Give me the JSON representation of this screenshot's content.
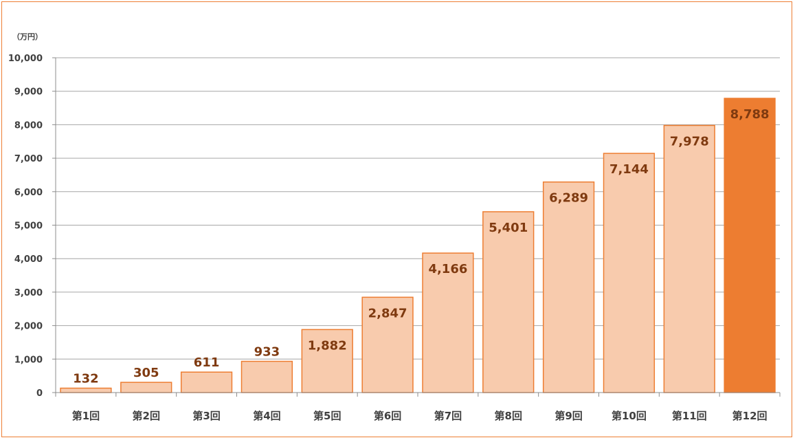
{
  "chart_data": {
    "type": "bar",
    "ylabel": "（万円）",
    "categories": [
      "第1回",
      "第2回",
      "第3回",
      "第4回",
      "第5回",
      "第6回",
      "第7回",
      "第8回",
      "第9回",
      "第10回",
      "第11回",
      "第12回"
    ],
    "values": [
      132,
      305,
      611,
      933,
      1882,
      2847,
      4166,
      5401,
      6289,
      7144,
      7978,
      8788
    ],
    "value_labels": [
      "132",
      "305",
      "611",
      "933",
      "1,882",
      "2,847",
      "4,166",
      "5,401",
      "6,289",
      "7,144",
      "7,978",
      "8,788"
    ],
    "ylim": [
      0,
      10000
    ],
    "yticks": [
      0,
      1000,
      2000,
      3000,
      4000,
      5000,
      6000,
      7000,
      8000,
      9000,
      10000
    ],
    "ytick_labels": [
      "0",
      "1,000",
      "2,000",
      "3,000",
      "4,000",
      "5,000",
      "6,000",
      "7,000",
      "8,000",
      "9,000",
      "10,000"
    ],
    "grid": true,
    "colors": {
      "bar_fill": "#F8CBAD",
      "bar_highlight_fill": "#ED7D31",
      "bar_stroke": "#ED7D31",
      "gridline": "#A6A6A6",
      "frame": "#ED7D31",
      "label_text": "#7F3A10",
      "axis_text": "#404040"
    },
    "highlight_index": 11
  }
}
